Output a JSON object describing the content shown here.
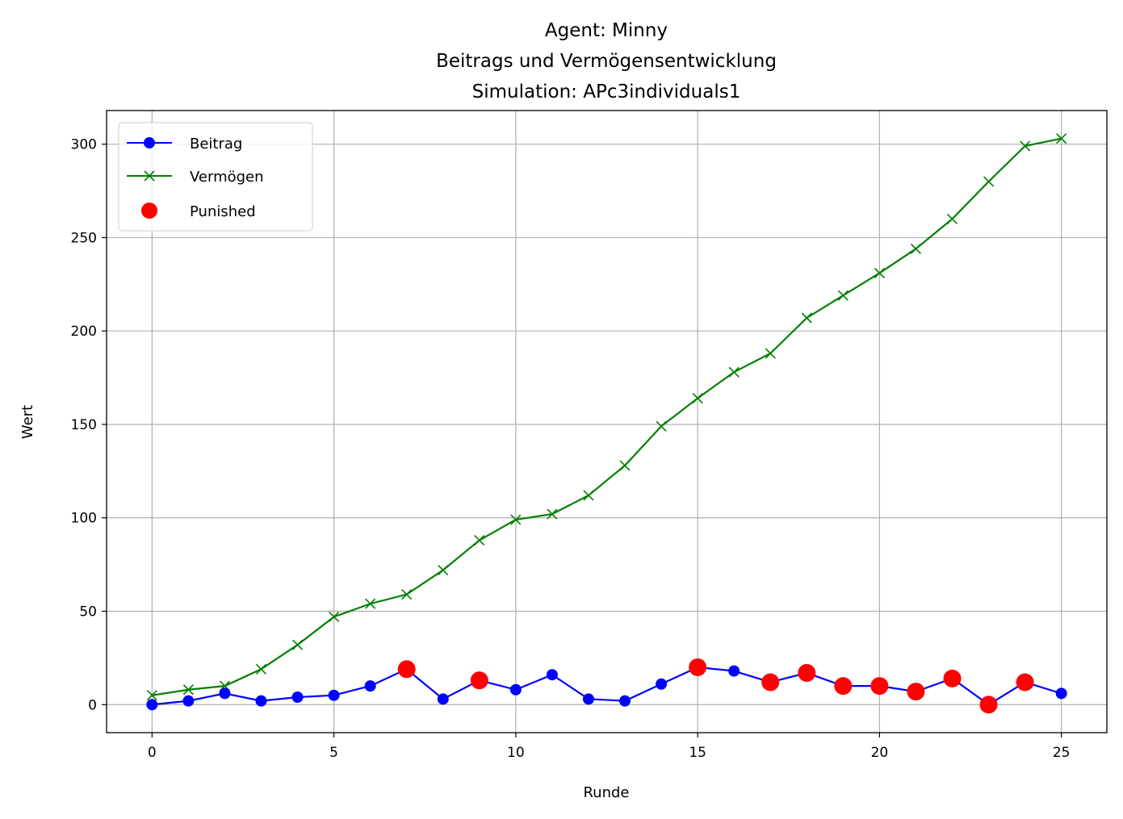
{
  "chart_data": {
    "type": "line",
    "title_lines": [
      "Agent: Minny",
      "Beitrags und Vermögensentwicklung",
      "Simulation: APc3individuals1"
    ],
    "xlabel": "Runde",
    "ylabel": "Wert",
    "xlim": [
      -1.25,
      26.25
    ],
    "ylim": [
      -15,
      318
    ],
    "xticks": [
      0,
      5,
      10,
      15,
      20,
      25
    ],
    "yticks": [
      0,
      50,
      100,
      150,
      200,
      250,
      300
    ],
    "grid": true,
    "legend_position": "top-left",
    "x": [
      0,
      1,
      2,
      3,
      4,
      5,
      6,
      7,
      8,
      9,
      10,
      11,
      12,
      13,
      14,
      15,
      16,
      17,
      18,
      19,
      20,
      21,
      22,
      23,
      24,
      25
    ],
    "series": [
      {
        "name": "Beitrag",
        "color": "#0000ff",
        "marker": "circle",
        "values": [
          0,
          2,
          6,
          2,
          4,
          5,
          10,
          19,
          3,
          13,
          8,
          16,
          3,
          2,
          11,
          20,
          18,
          12,
          17,
          10,
          10,
          7,
          14,
          0,
          12,
          6
        ]
      },
      {
        "name": "Vermögen",
        "color": "#008000",
        "marker": "x",
        "values": [
          5,
          8,
          10,
          19,
          32,
          47,
          54,
          59,
          72,
          88,
          99,
          102,
          112,
          128,
          149,
          164,
          178,
          188,
          207,
          219,
          231,
          244,
          260,
          280,
          299,
          303
        ]
      }
    ],
    "punished": {
      "name": "Punished",
      "color": "#ff0000",
      "marker": "circle",
      "x": [
        7,
        9,
        15,
        17,
        18,
        19,
        20,
        21,
        22,
        23,
        24
      ],
      "y": [
        19,
        13,
        20,
        12,
        17,
        10,
        10,
        7,
        14,
        0,
        12
      ]
    }
  }
}
